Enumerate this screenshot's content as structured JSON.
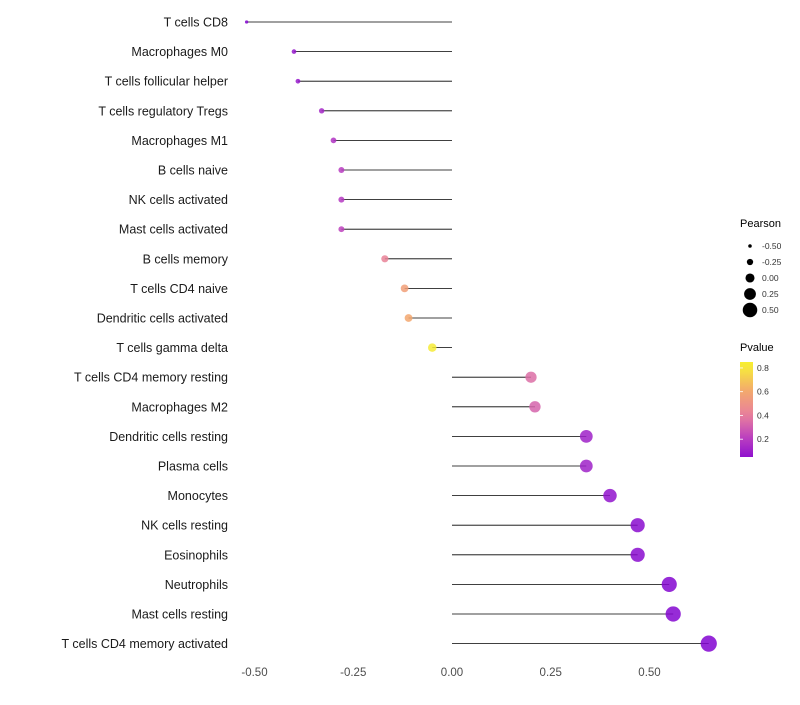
{
  "chart_data": {
    "type": "lollipop",
    "orientation": "horizontal",
    "title": "",
    "xlabel": "",
    "ylabel": "",
    "grid": false,
    "background": "#ffffff",
    "stem_color": "#000000",
    "xlim": [
      -0.56,
      0.7
    ],
    "x_ticks": [
      -0.5,
      -0.25,
      0,
      0.25,
      0.5
    ],
    "x_tick_labels": [
      "-0.50",
      "-0.25",
      "0.00",
      "0.25",
      "0.50"
    ],
    "points": [
      {
        "label": "T cells CD8",
        "pearson": -0.52,
        "pvalue": 0.01
      },
      {
        "label": "Macrophages M0",
        "pearson": -0.4,
        "pvalue": 0.07
      },
      {
        "label": "T cells follicular helper",
        "pearson": -0.39,
        "pvalue": 0.08
      },
      {
        "label": "T cells regulatory  Tregs",
        "pearson": -0.33,
        "pvalue": 0.13
      },
      {
        "label": "Macrophages M1",
        "pearson": -0.3,
        "pvalue": 0.17
      },
      {
        "label": "B cells naive",
        "pearson": -0.28,
        "pvalue": 0.2
      },
      {
        "label": "NK cells activated",
        "pearson": -0.28,
        "pvalue": 0.19
      },
      {
        "label": "Mast cells activated",
        "pearson": -0.28,
        "pvalue": 0.22
      },
      {
        "label": "B cells memory",
        "pearson": -0.17,
        "pvalue": 0.42
      },
      {
        "label": "T cells CD4 naive",
        "pearson": -0.12,
        "pvalue": 0.56
      },
      {
        "label": "Dendritic cells activated",
        "pearson": -0.11,
        "pvalue": 0.6
      },
      {
        "label": "T cells gamma delta",
        "pearson": -0.05,
        "pvalue": 0.82
      },
      {
        "label": "T cells CD4 memory resting",
        "pearson": 0.2,
        "pvalue": 0.35
      },
      {
        "label": "Macrophages M2",
        "pearson": 0.21,
        "pvalue": 0.32
      },
      {
        "label": "Dendritic cells resting",
        "pearson": 0.34,
        "pvalue": 0.11
      },
      {
        "label": "Plasma cells",
        "pearson": 0.34,
        "pvalue": 0.11
      },
      {
        "label": "Monocytes",
        "pearson": 0.4,
        "pvalue": 0.06
      },
      {
        "label": "NK cells resting",
        "pearson": 0.47,
        "pvalue": 0.03
      },
      {
        "label": "Eosinophils",
        "pearson": 0.47,
        "pvalue": 0.03
      },
      {
        "label": "Neutrophils",
        "pearson": 0.55,
        "pvalue": 0.01
      },
      {
        "label": "Mast cells resting",
        "pearson": 0.56,
        "pvalue": 0.01
      },
      {
        "label": "T cells CD4 memory activated",
        "pearson": 0.65,
        "pvalue": 0.005
      }
    ],
    "legend": {
      "position": "right",
      "size_legend": {
        "title": "Pearson",
        "labels": [
          "-0.50",
          "-0.25",
          "0.00",
          "0.25",
          "0.50"
        ],
        "values": [
          -0.5,
          -0.25,
          0,
          0.25,
          0.5
        ],
        "dot_color": "#000000"
      },
      "color_legend": {
        "title": "Pvalue",
        "labels": [
          "0.8",
          "0.6",
          "0.4",
          "0.2"
        ],
        "values": [
          0.8,
          0.6,
          0.4,
          0.2
        ],
        "range": [
          0.05,
          0.85
        ],
        "gradient_top_to_bottom": [
          "#f7ef30",
          "#f6e83c",
          "#f3a76f",
          "#e87f9d",
          "#b83cc1",
          "#8f11cd"
        ]
      }
    },
    "colors": {
      "pvalue_scale_stops": {
        "0.0": "#8103d1",
        "0.2": "#b83cc1",
        "0.4": "#e87f9d",
        "0.6": "#f3a76f",
        "0.8": "#f6e83c",
        "0.9": "#f8f523"
      },
      "text": "#1a1a1a",
      "axis_text": "#4d4d4d"
    }
  }
}
